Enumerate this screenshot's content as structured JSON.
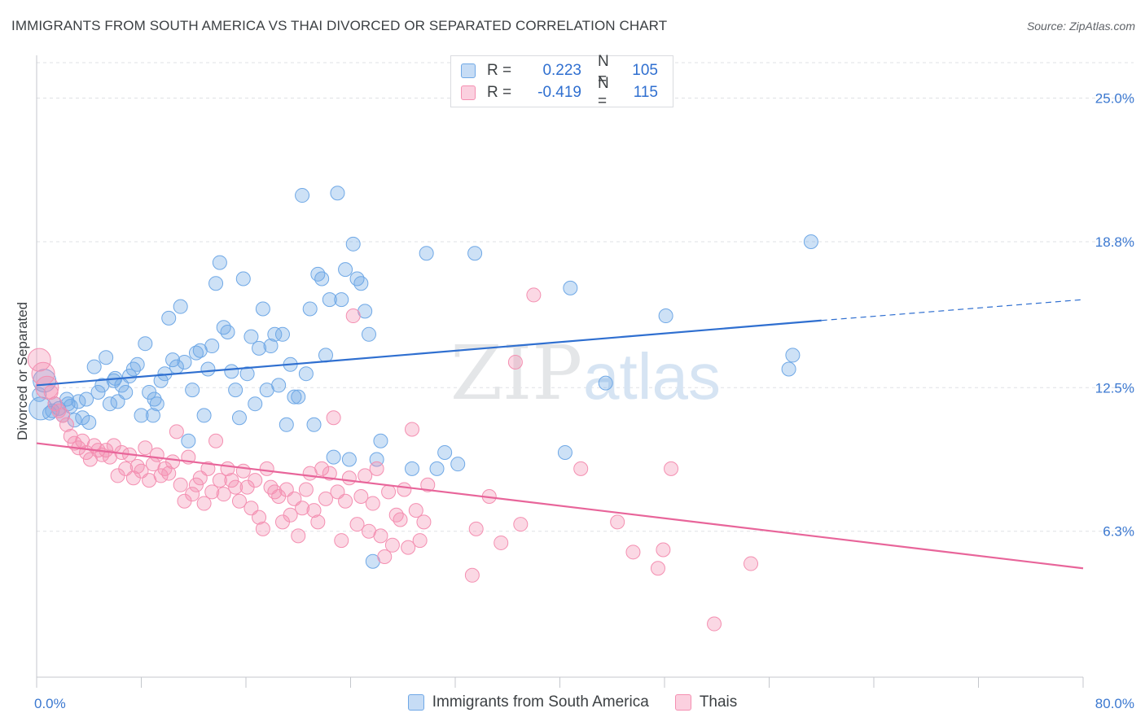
{
  "title": "IMMIGRANTS FROM SOUTH AMERICA VS THAI DIVORCED OR SEPARATED CORRELATION CHART",
  "source": "Source: ZipAtlas.com",
  "watermark": {
    "zip": "ZIP",
    "atlas": "atlas"
  },
  "legend_top": [
    {
      "r_label": "R =",
      "r_value": "0.223",
      "n_label": "N =",
      "n_value": "105",
      "color": "#6fa8e6"
    },
    {
      "r_label": "R =",
      "r_value": "-0.419",
      "n_label": "N =",
      "n_value": "115",
      "color": "#f48fb1"
    }
  ],
  "chart_data": {
    "type": "scatter",
    "ylabel": "Divorced or Separated",
    "xlim": [
      0,
      80
    ],
    "ylim": [
      0,
      26.6
    ],
    "x_tick_labels": [
      "0.0%",
      "80.0%"
    ],
    "y_ticks": [
      6.3,
      12.5,
      18.8,
      25.0
    ],
    "y_tick_labels": [
      "6.3%",
      "12.5%",
      "18.8%",
      "25.0%"
    ],
    "grid": true,
    "series": [
      {
        "name": "Immigrants from South America",
        "color": "#6fa8e6",
        "line_color": "#2f6fd0",
        "trend": {
          "x0": 0,
          "y0": 12.6,
          "x1": 60,
          "y1": 15.4,
          "dash_to_x": 80,
          "dash_to_y": 16.3
        },
        "points": [
          [
            0.3,
            11.6
          ],
          [
            0.6,
            12.8
          ],
          [
            1.0,
            11.4
          ],
          [
            1.4,
            11.8
          ],
          [
            1.7,
            11.6
          ],
          [
            2.0,
            11.3
          ],
          [
            2.3,
            12.0
          ],
          [
            2.6,
            11.7
          ],
          [
            2.9,
            11.1
          ],
          [
            3.2,
            11.9
          ],
          [
            3.5,
            11.2
          ],
          [
            3.8,
            12.0
          ],
          [
            4.0,
            11.0
          ],
          [
            4.4,
            13.4
          ],
          [
            4.7,
            12.3
          ],
          [
            5.0,
            12.6
          ],
          [
            5.3,
            13.8
          ],
          [
            5.6,
            11.8
          ],
          [
            5.9,
            12.8
          ],
          [
            6.2,
            11.9
          ],
          [
            6.5,
            12.6
          ],
          [
            6.8,
            12.3
          ],
          [
            7.1,
            13.0
          ],
          [
            7.4,
            13.3
          ],
          [
            7.7,
            13.5
          ],
          [
            8.0,
            11.3
          ],
          [
            8.3,
            14.4
          ],
          [
            8.6,
            12.3
          ],
          [
            8.9,
            11.3
          ],
          [
            9.2,
            11.8
          ],
          [
            9.5,
            12.8
          ],
          [
            9.8,
            13.1
          ],
          [
            10.1,
            15.5
          ],
          [
            10.4,
            13.7
          ],
          [
            10.7,
            13.4
          ],
          [
            11.0,
            16.0
          ],
          [
            11.3,
            13.6
          ],
          [
            11.6,
            10.2
          ],
          [
            11.9,
            12.4
          ],
          [
            12.2,
            14.0
          ],
          [
            12.5,
            14.1
          ],
          [
            12.8,
            11.3
          ],
          [
            13.1,
            13.3
          ],
          [
            13.4,
            14.3
          ],
          [
            13.7,
            17.0
          ],
          [
            14.0,
            17.9
          ],
          [
            14.3,
            15.1
          ],
          [
            14.6,
            14.9
          ],
          [
            14.9,
            13.2
          ],
          [
            15.2,
            12.4
          ],
          [
            15.5,
            11.2
          ],
          [
            15.8,
            17.2
          ],
          [
            16.1,
            13.1
          ],
          [
            16.4,
            14.7
          ],
          [
            16.7,
            11.8
          ],
          [
            17.0,
            14.2
          ],
          [
            17.3,
            15.9
          ],
          [
            17.6,
            12.4
          ],
          [
            17.9,
            14.3
          ],
          [
            18.2,
            14.8
          ],
          [
            18.5,
            12.6
          ],
          [
            18.8,
            14.8
          ],
          [
            19.1,
            10.9
          ],
          [
            19.4,
            13.5
          ],
          [
            19.7,
            12.1
          ],
          [
            20.0,
            12.1
          ],
          [
            20.3,
            20.8
          ],
          [
            20.6,
            13.1
          ],
          [
            20.9,
            15.9
          ],
          [
            21.2,
            10.9
          ],
          [
            21.5,
            17.4
          ],
          [
            21.8,
            17.2
          ],
          [
            22.1,
            13.9
          ],
          [
            22.4,
            16.3
          ],
          [
            22.7,
            9.5
          ],
          [
            23.0,
            20.9
          ],
          [
            23.3,
            16.3
          ],
          [
            23.6,
            17.6
          ],
          [
            23.9,
            9.4
          ],
          [
            24.2,
            18.7
          ],
          [
            24.5,
            17.2
          ],
          [
            24.8,
            17.0
          ],
          [
            25.1,
            15.8
          ],
          [
            25.4,
            14.8
          ],
          [
            25.7,
            5.0
          ],
          [
            26.0,
            9.4
          ],
          [
            26.3,
            10.2
          ],
          [
            28.7,
            9.0
          ],
          [
            29.8,
            18.3
          ],
          [
            30.6,
            9.0
          ],
          [
            31.2,
            9.7
          ],
          [
            32.2,
            9.2
          ],
          [
            33.5,
            18.3
          ],
          [
            40.4,
            9.7
          ],
          [
            40.8,
            16.8
          ],
          [
            43.5,
            12.7
          ],
          [
            48.1,
            15.6
          ],
          [
            57.5,
            13.3
          ],
          [
            57.8,
            13.9
          ],
          [
            59.2,
            18.8
          ],
          [
            0.2,
            12.2
          ],
          [
            1.2,
            11.5
          ],
          [
            2.4,
            11.8
          ],
          [
            6.0,
            12.9
          ],
          [
            9.0,
            12.0
          ]
        ]
      },
      {
        "name": "Thais",
        "color": "#f48fb1",
        "line_color": "#e8659a",
        "trend": {
          "x0": 0,
          "y0": 10.1,
          "x1": 80,
          "y1": 4.7
        },
        "points": [
          [
            0.2,
            13.7
          ],
          [
            0.5,
            13.1
          ],
          [
            0.8,
            12.5
          ],
          [
            1.1,
            12.3
          ],
          [
            1.4,
            11.8
          ],
          [
            1.7,
            11.5
          ],
          [
            2.0,
            11.3
          ],
          [
            2.3,
            10.9
          ],
          [
            2.6,
            10.4
          ],
          [
            2.9,
            10.1
          ],
          [
            3.2,
            9.9
          ],
          [
            3.5,
            10.2
          ],
          [
            3.8,
            9.7
          ],
          [
            4.1,
            9.4
          ],
          [
            4.4,
            10.0
          ],
          [
            4.7,
            9.8
          ],
          [
            5.0,
            9.6
          ],
          [
            5.3,
            9.8
          ],
          [
            5.6,
            9.5
          ],
          [
            5.9,
            10.0
          ],
          [
            6.2,
            8.7
          ],
          [
            6.5,
            9.7
          ],
          [
            6.8,
            9.0
          ],
          [
            7.1,
            9.6
          ],
          [
            7.4,
            8.6
          ],
          [
            7.7,
            9.1
          ],
          [
            8.0,
            8.9
          ],
          [
            8.3,
            9.9
          ],
          [
            8.6,
            8.5
          ],
          [
            8.9,
            9.2
          ],
          [
            9.2,
            9.6
          ],
          [
            9.5,
            8.7
          ],
          [
            9.8,
            9.0
          ],
          [
            10.1,
            8.8
          ],
          [
            10.4,
            9.3
          ],
          [
            10.7,
            10.6
          ],
          [
            11.0,
            8.3
          ],
          [
            11.3,
            7.6
          ],
          [
            11.6,
            9.5
          ],
          [
            11.9,
            7.9
          ],
          [
            12.2,
            8.3
          ],
          [
            12.5,
            8.6
          ],
          [
            12.8,
            7.5
          ],
          [
            13.1,
            9.0
          ],
          [
            13.4,
            8.0
          ],
          [
            13.7,
            10.2
          ],
          [
            14.0,
            8.5
          ],
          [
            14.3,
            7.9
          ],
          [
            14.6,
            9.0
          ],
          [
            14.9,
            8.5
          ],
          [
            15.2,
            8.2
          ],
          [
            15.5,
            7.6
          ],
          [
            15.8,
            8.9
          ],
          [
            16.1,
            8.2
          ],
          [
            16.4,
            7.3
          ],
          [
            16.7,
            8.5
          ],
          [
            17.0,
            6.9
          ],
          [
            17.3,
            6.4
          ],
          [
            17.6,
            9.0
          ],
          [
            17.9,
            8.2
          ],
          [
            18.2,
            8.0
          ],
          [
            18.5,
            7.8
          ],
          [
            18.8,
            6.7
          ],
          [
            19.1,
            8.1
          ],
          [
            19.4,
            7.0
          ],
          [
            19.7,
            7.7
          ],
          [
            20.0,
            6.1
          ],
          [
            20.3,
            7.3
          ],
          [
            20.6,
            8.1
          ],
          [
            20.9,
            8.8
          ],
          [
            21.2,
            7.2
          ],
          [
            21.5,
            6.7
          ],
          [
            21.8,
            9.0
          ],
          [
            22.1,
            7.7
          ],
          [
            22.4,
            8.8
          ],
          [
            22.7,
            11.2
          ],
          [
            23.0,
            8.0
          ],
          [
            23.3,
            5.9
          ],
          [
            23.6,
            7.6
          ],
          [
            23.9,
            8.6
          ],
          [
            24.2,
            15.6
          ],
          [
            24.5,
            6.6
          ],
          [
            24.8,
            7.8
          ],
          [
            25.1,
            8.7
          ],
          [
            25.4,
            6.3
          ],
          [
            25.7,
            7.5
          ],
          [
            26.0,
            9.0
          ],
          [
            26.3,
            6.1
          ],
          [
            26.6,
            5.2
          ],
          [
            26.9,
            8.0
          ],
          [
            27.2,
            5.7
          ],
          [
            27.5,
            7.0
          ],
          [
            27.8,
            6.8
          ],
          [
            28.1,
            8.1
          ],
          [
            28.4,
            5.6
          ],
          [
            28.7,
            10.7
          ],
          [
            29.0,
            7.2
          ],
          [
            29.3,
            5.9
          ],
          [
            29.6,
            6.7
          ],
          [
            29.9,
            8.3
          ],
          [
            33.3,
            4.4
          ],
          [
            33.6,
            6.4
          ],
          [
            34.6,
            7.8
          ],
          [
            35.5,
            5.8
          ],
          [
            36.6,
            13.6
          ],
          [
            37.0,
            6.6
          ],
          [
            38.0,
            16.5
          ],
          [
            41.6,
            9.0
          ],
          [
            44.4,
            6.7
          ],
          [
            45.6,
            5.4
          ],
          [
            47.5,
            4.7
          ],
          [
            47.9,
            5.5
          ],
          [
            48.5,
            9.0
          ],
          [
            51.8,
            2.3
          ],
          [
            54.6,
            4.9
          ]
        ]
      }
    ]
  },
  "legend_bottom": [
    {
      "label": "Immigrants from South America",
      "color": "#6fa8e6"
    },
    {
      "label": "Thais",
      "color": "#f48fb1"
    }
  ]
}
